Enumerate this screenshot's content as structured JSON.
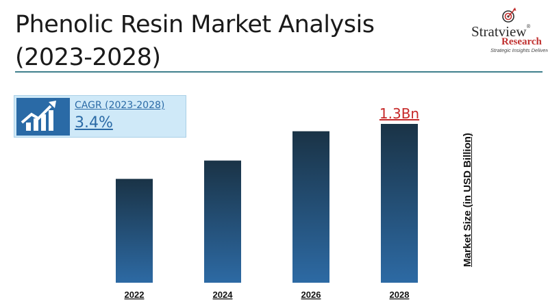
{
  "header": {
    "title": "Phenolic Resin Market Analysis (2023-2028)"
  },
  "logo": {
    "name": "Stratview",
    "registered": "®",
    "research": "Research",
    "tagline": "Strategic Insights Delivered"
  },
  "cagr": {
    "label": "CAGR (2023-2028)",
    "value": "3.4%",
    "icon": "growth-chart-icon"
  },
  "colors": {
    "bar_top": "#1a3346",
    "bar_bottom": "#2d6aa4",
    "cagr_bg": "#cfe9f8",
    "accent_blue": "#2a6aa6",
    "highlight_red": "#c62828"
  },
  "chart_data": {
    "type": "bar",
    "categories": [
      "2022",
      "2024",
      "2026",
      "2028"
    ],
    "values": [
      0.85,
      1.0,
      1.24,
      1.3
    ],
    "data_labels": [
      null,
      null,
      null,
      "1.3Bn"
    ],
    "title": "",
    "xlabel": "",
    "ylabel": "Market Size (in USD Billion)",
    "ylim": [
      0,
      1.3
    ],
    "grid": false,
    "legend": "none"
  }
}
